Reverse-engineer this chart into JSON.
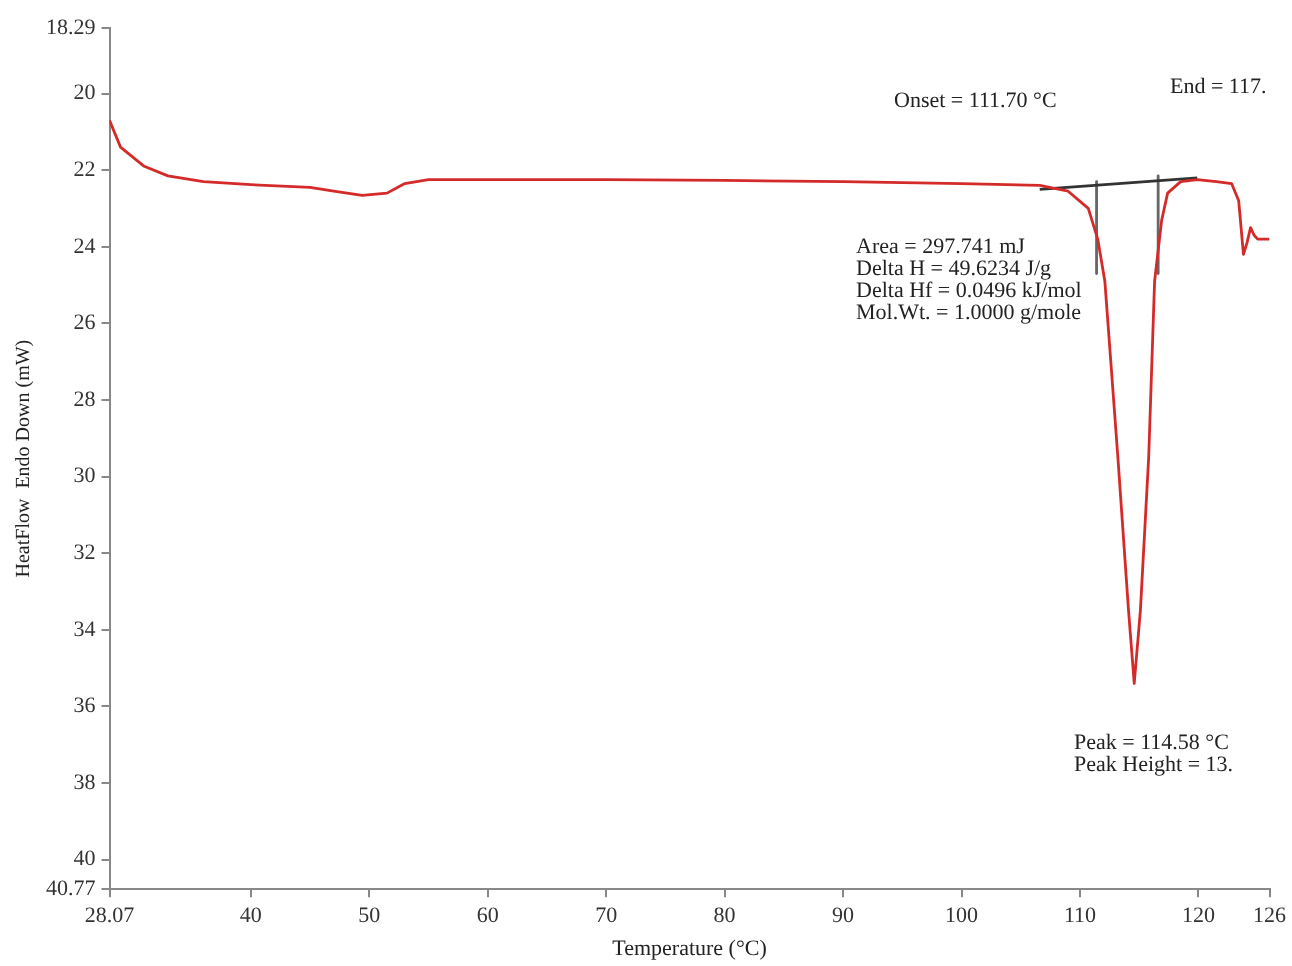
{
  "chart_data": {
    "type": "line",
    "xlabel": "Temperature (°C)",
    "ylabel": "HeatFlow  Endo Down (mW)",
    "xlim": [
      28.07,
      126
    ],
    "xticks": [
      28.07,
      40,
      50,
      60,
      70,
      80,
      90,
      100,
      110,
      120,
      126
    ],
    "ylim": [
      40.77,
      18.29
    ],
    "yticks": [
      18.29,
      20,
      22,
      24,
      26,
      28,
      30,
      32,
      34,
      36,
      38,
      40,
      40.77
    ],
    "series": [
      {
        "type": "line",
        "color": "#d42a2a",
        "x": [
          28.07,
          29,
          31,
          33,
          36,
          40,
          45,
          47,
          49.4,
          51.5,
          53,
          55,
          60,
          70,
          80,
          90,
          100,
          106.6,
          109,
          110.7,
          111.5,
          112.1,
          113.2,
          114.1,
          114.58,
          115.1,
          115.8,
          116.3,
          116.9,
          117.4,
          118.5,
          119.9,
          121.5,
          122.8,
          123.4,
          123.8,
          124.1,
          124.4,
          124.7,
          125,
          125.5,
          126
        ],
        "values": [
          20.7,
          21.4,
          21.9,
          22.15,
          22.3,
          22.38,
          22.45,
          22.55,
          22.66,
          22.6,
          22.35,
          22.25,
          22.25,
          22.25,
          22.27,
          22.3,
          22.35,
          22.4,
          22.55,
          23.0,
          23.8,
          24.9,
          29.5,
          33.5,
          35.4,
          33.5,
          29.5,
          24.9,
          23.3,
          22.6,
          22.3,
          22.25,
          22.3,
          22.35,
          22.8,
          24.2,
          23.9,
          23.5,
          23.7,
          23.8,
          23.8,
          23.8
        ]
      },
      {
        "type": "line",
        "color": "#333333",
        "x": [
          106.6,
          119.9
        ],
        "values": [
          22.5,
          22.2
        ]
      },
      {
        "type": "line",
        "color": "#666666",
        "x": [
          111.4,
          111.4
        ],
        "values": [
          22.3,
          24.7
        ]
      },
      {
        "type": "line",
        "color": "#666666",
        "x": [
          116.6,
          116.6
        ],
        "values": [
          22.15,
          24.7
        ]
      }
    ],
    "annotations": [
      "Onset = 111.70 °C",
      "End = 117.",
      "Area = 297.741 mJ",
      "Delta H = 49.6234 J/g",
      "Delta Hf = 0.0496 kJ/mol",
      "Mol.Wt. = 1.0000 g/mole",
      "Peak = 114.58 °C",
      "Peak Height = 13."
    ]
  }
}
